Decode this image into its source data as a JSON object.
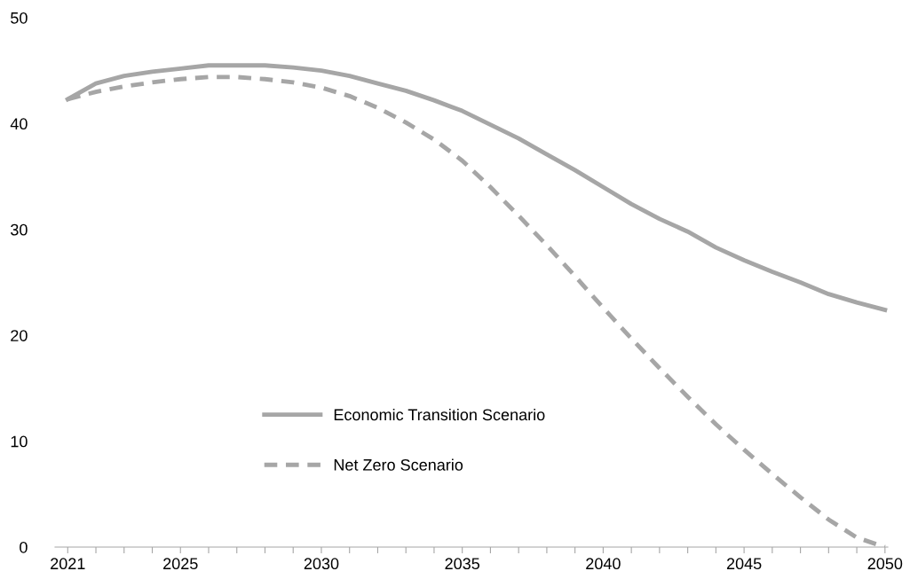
{
  "chart_data": {
    "type": "line",
    "x": [
      2021,
      2022,
      2023,
      2024,
      2025,
      2026,
      2027,
      2028,
      2029,
      2030,
      2031,
      2032,
      2033,
      2034,
      2035,
      2036,
      2037,
      2038,
      2039,
      2040,
      2041,
      2042,
      2043,
      2044,
      2045,
      2046,
      2047,
      2048,
      2049,
      2050
    ],
    "series": [
      {
        "name": "Economic Transition Scenario",
        "color": "#a6a6a6",
        "line_style": "solid",
        "values": [
          42.3,
          43.8,
          44.5,
          44.9,
          45.2,
          45.5,
          45.5,
          45.5,
          45.3,
          45.0,
          44.5,
          43.8,
          43.1,
          42.2,
          41.2,
          39.9,
          38.6,
          37.1,
          35.6,
          34.0,
          32.4,
          31.0,
          29.8,
          28.3,
          27.1,
          26.0,
          25.0,
          23.9,
          23.1,
          22.4
        ]
      },
      {
        "name": "Net Zero Scenario",
        "color": "#a6a6a6",
        "line_style": "dashed",
        "values": [
          42.3,
          43.0,
          43.5,
          43.9,
          44.2,
          44.4,
          44.4,
          44.2,
          43.9,
          43.4,
          42.6,
          41.5,
          40.1,
          38.5,
          36.5,
          34.0,
          31.3,
          28.5,
          25.6,
          22.6,
          19.7,
          16.9,
          14.2,
          11.6,
          9.2,
          6.9,
          4.7,
          2.6,
          0.9,
          0.0
        ]
      }
    ],
    "xlim": [
      2020.55,
      2050.1
    ],
    "xticks": [
      2021,
      {
        "value": 2022,
        "label": null
      },
      {
        "value": 2023,
        "label": null
      },
      {
        "value": 2024,
        "label": null
      },
      2025,
      {
        "value": 2026,
        "label": null
      },
      {
        "value": 2027,
        "label": null
      },
      {
        "value": 2028,
        "label": null
      },
      {
        "value": 2029,
        "label": null
      },
      2030,
      {
        "value": 2031,
        "label": null
      },
      {
        "value": 2032,
        "label": null
      },
      {
        "value": 2033,
        "label": null
      },
      {
        "value": 2034,
        "label": null
      },
      2035,
      {
        "value": 2036,
        "label": null
      },
      {
        "value": 2037,
        "label": null
      },
      {
        "value": 2038,
        "label": null
      },
      {
        "value": 2039,
        "label": null
      },
      2040,
      {
        "value": 2041,
        "label": null
      },
      {
        "value": 2042,
        "label": null
      },
      {
        "value": 2043,
        "label": null
      },
      {
        "value": 2044,
        "label": null
      },
      2045,
      {
        "value": 2046,
        "label": null
      },
      {
        "value": 2047,
        "label": null
      },
      {
        "value": 2048,
        "label": null
      },
      {
        "value": 2049,
        "label": null
      },
      2050
    ],
    "ylim": [
      0,
      50
    ],
    "yticks": [
      0,
      10,
      20,
      30,
      40,
      50
    ],
    "grid": false,
    "legend": "bottom",
    "marker": "none"
  }
}
